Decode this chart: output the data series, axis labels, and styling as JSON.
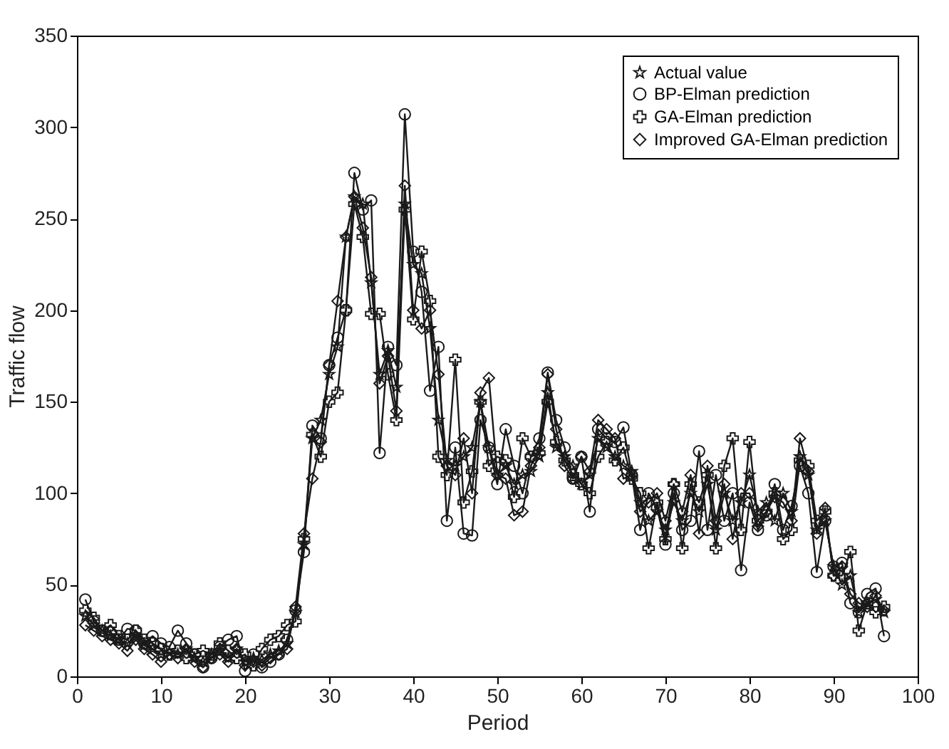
{
  "chart_data": {
    "type": "line",
    "xlabel": "Period",
    "ylabel": "Traffic flow",
    "xlim": [
      0,
      100
    ],
    "xticks": [
      0,
      10,
      20,
      30,
      40,
      50,
      60,
      70,
      80,
      90,
      100
    ],
    "ylim": [
      0,
      350
    ],
    "yticks": [
      0,
      50,
      100,
      150,
      200,
      250,
      300,
      350
    ],
    "grid": false,
    "legend": "top right",
    "line_style": "solid",
    "x": [
      1,
      2,
      3,
      4,
      5,
      6,
      7,
      8,
      9,
      10,
      11,
      12,
      13,
      14,
      15,
      16,
      17,
      18,
      19,
      20,
      21,
      22,
      23,
      24,
      25,
      26,
      27,
      28,
      29,
      30,
      31,
      32,
      33,
      34,
      35,
      36,
      37,
      38,
      39,
      40,
      41,
      42,
      43,
      44,
      45,
      46,
      47,
      48,
      49,
      50,
      51,
      52,
      53,
      54,
      55,
      56,
      57,
      58,
      59,
      60,
      61,
      62,
      63,
      64,
      65,
      66,
      67,
      68,
      69,
      70,
      71,
      72,
      73,
      74,
      75,
      76,
      77,
      78,
      79,
      80,
      81,
      82,
      83,
      84,
      85,
      86,
      87,
      88,
      89,
      90,
      91,
      92,
      93,
      94,
      95,
      96
    ],
    "series": [
      {
        "name": "Actual value",
        "color": "#1a1a1a",
        "marker": "star",
        "values": [
          33,
          28,
          25,
          22,
          20,
          18,
          22,
          17,
          15,
          12,
          13,
          12,
          15,
          10,
          8,
          12,
          14,
          10,
          15,
          8,
          10,
          9,
          12,
          14,
          18,
          35,
          72,
          130,
          140,
          165,
          180,
          240,
          262,
          258,
          215,
          165,
          178,
          158,
          258,
          225,
          220,
          190,
          140,
          118,
          115,
          120,
          125,
          150,
          125,
          110,
          115,
          105,
          110,
          112,
          120,
          155,
          125,
          120,
          115,
          105,
          110,
          130,
          125,
          120,
          115,
          112,
          95,
          85,
          90,
          80,
          95,
          85,
          100,
          90,
          105,
          80,
          100,
          85,
          95,
          110,
          90,
          95,
          85,
          100,
          90,
          120,
          110,
          80,
          85,
          60,
          50,
          55,
          35,
          40,
          42,
          35
        ]
      },
      {
        "name": "BP-Elman prediction",
        "color": "#1a1a1a",
        "marker": "circle",
        "values": [
          42,
          30,
          25,
          24,
          20,
          26,
          25,
          18,
          22,
          18,
          16,
          25,
          18,
          12,
          5,
          10,
          16,
          20,
          22,
          3,
          12,
          5,
          8,
          12,
          20,
          36,
          68,
          137,
          130,
          170,
          185,
          200,
          275,
          255,
          260,
          122,
          180,
          170,
          307,
          232,
          210,
          156,
          180,
          85,
          125,
          78,
          77,
          140,
          125,
          105,
          135,
          115,
          100,
          120,
          130,
          166,
          140,
          125,
          108,
          120,
          90,
          135,
          130,
          128,
          136,
          110,
          80,
          100,
          92,
          72,
          100,
          80,
          85,
          123,
          80,
          110,
          85,
          100,
          58,
          95,
          80,
          88,
          105,
          80,
          93,
          115,
          100,
          57,
          85,
          60,
          62,
          40,
          35,
          45,
          48,
          22
        ]
      },
      {
        "name": "GA-Elman prediction",
        "color": "#1a1a1a",
        "marker": "cross",
        "values": [
          36,
          32,
          25,
          28,
          22,
          20,
          25,
          20,
          18,
          15,
          12,
          14,
          10,
          12,
          14,
          12,
          18,
          14,
          10,
          12,
          6,
          15,
          20,
          22,
          28,
          30,
          75,
          132,
          120,
          150,
          155,
          200,
          258,
          240,
          198,
          198,
          165,
          140,
          255,
          195,
          232,
          205,
          120,
          110,
          173,
          95,
          112,
          150,
          115,
          120,
          118,
          98,
          130,
          120,
          122,
          150,
          128,
          118,
          110,
          105,
          100,
          120,
          128,
          118,
          125,
          108,
          100,
          70,
          95,
          75,
          105,
          70,
          105,
          95,
          110,
          70,
          115,
          130,
          80,
          128,
          85,
          90,
          100,
          75,
          80,
          118,
          115,
          85,
          90,
          55,
          55,
          68,
          25,
          40,
          35,
          38
        ]
      },
      {
        "name": "Improved GA-Elman prediction",
        "color": "#1a1a1a",
        "marker": "diamond",
        "values": [
          28,
          25,
          22,
          20,
          18,
          14,
          20,
          15,
          12,
          8,
          12,
          10,
          15,
          8,
          5,
          10,
          12,
          8,
          15,
          6,
          8,
          6,
          10,
          12,
          15,
          38,
          78,
          108,
          128,
          170,
          205,
          240,
          262,
          245,
          218,
          160,
          175,
          145,
          268,
          200,
          190,
          200,
          165,
          115,
          110,
          130,
          100,
          155,
          163,
          110,
          108,
          88,
          90,
          115,
          125,
          165,
          135,
          115,
          108,
          120,
          112,
          140,
          135,
          130,
          108,
          110,
          90,
          95,
          100,
          85,
          105,
          90,
          110,
          78,
          115,
          85,
          105,
          75,
          100,
          100,
          82,
          90,
          98,
          95,
          85,
          130,
          112,
          78,
          92,
          55,
          60,
          45,
          40,
          38,
          44,
          36
        ]
      }
    ]
  }
}
